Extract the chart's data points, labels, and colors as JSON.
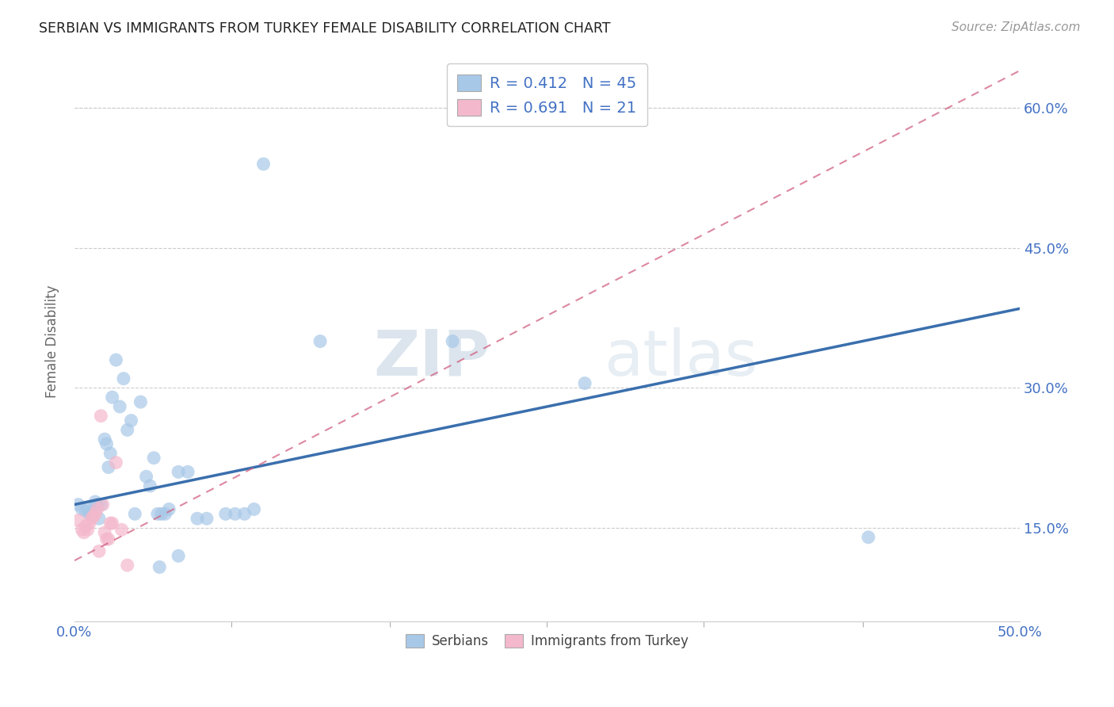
{
  "title": "SERBIAN VS IMMIGRANTS FROM TURKEY FEMALE DISABILITY CORRELATION CHART",
  "source": "Source: ZipAtlas.com",
  "ylabel": "Female Disability",
  "xlim": [
    0.0,
    0.5
  ],
  "ylim": [
    0.05,
    0.65
  ],
  "xtick_labels_show": [
    "0.0%",
    "50.0%"
  ],
  "xtick_vals_show": [
    0.0,
    0.5
  ],
  "xtick_vals_grid": [
    0.0,
    0.083,
    0.167,
    0.25,
    0.333,
    0.417,
    0.5
  ],
  "ytick_labels": [
    "15.0%",
    "30.0%",
    "45.0%",
    "60.0%"
  ],
  "ytick_vals": [
    0.15,
    0.3,
    0.45,
    0.6
  ],
  "legend_blue_r": "R = 0.412",
  "legend_blue_n": "N = 45",
  "legend_pink_r": "R = 0.691",
  "legend_pink_n": "N = 21",
  "watermark": "ZIPatlas",
  "blue_color": "#a8c8e8",
  "pink_color": "#f4b8cc",
  "blue_line_color": "#3a6fad",
  "pink_line_color": "#d06080",
  "blue_scatter": [
    [
      0.002,
      0.175
    ],
    [
      0.004,
      0.17
    ],
    [
      0.006,
      0.168
    ],
    [
      0.007,
      0.172
    ],
    [
      0.008,
      0.165
    ],
    [
      0.009,
      0.163
    ],
    [
      0.01,
      0.17
    ],
    [
      0.011,
      0.178
    ],
    [
      0.012,
      0.175
    ],
    [
      0.013,
      0.16
    ],
    [
      0.014,
      0.175
    ],
    [
      0.016,
      0.245
    ],
    [
      0.017,
      0.24
    ],
    [
      0.018,
      0.215
    ],
    [
      0.019,
      0.23
    ],
    [
      0.02,
      0.29
    ],
    [
      0.022,
      0.33
    ],
    [
      0.024,
      0.28
    ],
    [
      0.026,
      0.31
    ],
    [
      0.028,
      0.255
    ],
    [
      0.03,
      0.265
    ],
    [
      0.032,
      0.165
    ],
    [
      0.035,
      0.285
    ],
    [
      0.038,
      0.205
    ],
    [
      0.04,
      0.195
    ],
    [
      0.042,
      0.225
    ],
    [
      0.044,
      0.165
    ],
    [
      0.046,
      0.165
    ],
    [
      0.048,
      0.165
    ],
    [
      0.05,
      0.17
    ],
    [
      0.055,
      0.21
    ],
    [
      0.06,
      0.21
    ],
    [
      0.065,
      0.16
    ],
    [
      0.07,
      0.16
    ],
    [
      0.08,
      0.165
    ],
    [
      0.085,
      0.165
    ],
    [
      0.09,
      0.165
    ],
    [
      0.095,
      0.17
    ],
    [
      0.1,
      0.54
    ],
    [
      0.13,
      0.35
    ],
    [
      0.2,
      0.35
    ],
    [
      0.27,
      0.305
    ],
    [
      0.42,
      0.14
    ],
    [
      0.055,
      0.12
    ],
    [
      0.045,
      0.108
    ]
  ],
  "pink_scatter": [
    [
      0.002,
      0.158
    ],
    [
      0.004,
      0.148
    ],
    [
      0.005,
      0.145
    ],
    [
      0.006,
      0.152
    ],
    [
      0.007,
      0.148
    ],
    [
      0.008,
      0.155
    ],
    [
      0.009,
      0.16
    ],
    [
      0.01,
      0.162
    ],
    [
      0.011,
      0.165
    ],
    [
      0.012,
      0.17
    ],
    [
      0.013,
      0.125
    ],
    [
      0.014,
      0.27
    ],
    [
      0.015,
      0.175
    ],
    [
      0.016,
      0.145
    ],
    [
      0.017,
      0.138
    ],
    [
      0.018,
      0.138
    ],
    [
      0.019,
      0.155
    ],
    [
      0.02,
      0.155
    ],
    [
      0.022,
      0.22
    ],
    [
      0.025,
      0.148
    ],
    [
      0.028,
      0.11
    ]
  ],
  "blue_reg_line": [
    [
      0.0,
      0.175
    ],
    [
      0.5,
      0.385
    ]
  ],
  "pink_reg_line": [
    [
      0.0,
      0.115
    ],
    [
      0.5,
      0.64
    ]
  ]
}
